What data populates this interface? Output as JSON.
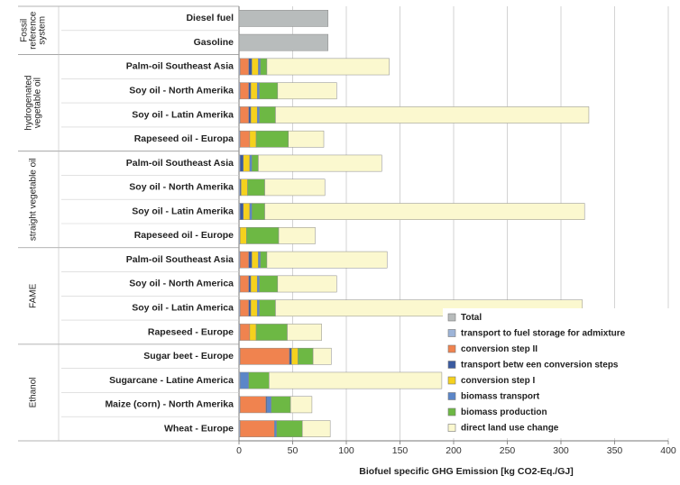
{
  "chart_data": {
    "type": "bar",
    "orientation": "horizontal",
    "stacked": true,
    "xlabel": "Biofuel specific GHG Emission [kg CO2-Eq./GJ]",
    "xlim": [
      0,
      400
    ],
    "xticks": [
      0,
      50,
      100,
      150,
      200,
      250,
      300,
      350,
      400
    ],
    "grid": true,
    "legend_position": "bottom-right",
    "groups": [
      {
        "name": "Fossil reference system",
        "label_lines": [
          "Fossil",
          "reference",
          "system"
        ],
        "rows": 2
      },
      {
        "name": "hydrogenated vegetable oil",
        "label_lines": [
          "hydrogenated",
          "vegetable oil"
        ],
        "rows": 4
      },
      {
        "name": "straight vegetable oil",
        "label_lines": [
          "straight vegetable oil"
        ],
        "rows": 4
      },
      {
        "name": "FAME",
        "label_lines": [
          "FAME"
        ],
        "rows": 4
      },
      {
        "name": "Ethanol",
        "label_lines": [
          "Ethanol"
        ],
        "rows": 4
      }
    ],
    "categories": [
      "Diesel fuel",
      "Gasoline",
      "Palm-oil Southeast Asia",
      "Soy oil - North Amerika",
      "Soy oil - Latin Amerika",
      "Rapeseed oil - Europa",
      "Palm-oil Southeast Asia",
      "Soy oil - North Amerika",
      "Soy oil - Latin Amerika",
      "Rapeseed oil - Europe",
      "Palm-oil Southeast Asia",
      "Soy oil - North America",
      "Soy oil - Latin America",
      "Rapeseed - Europe",
      "Sugar beet - Europe",
      "Sugarcane - Latine America",
      "Maize (corn) - North Amerika",
      "Wheat - Europe"
    ],
    "series": [
      {
        "name": "Total",
        "color": "#b8bcbc",
        "values": [
          83,
          83,
          0,
          0,
          0,
          0,
          0,
          0,
          0,
          0,
          0,
          0,
          0,
          0,
          0,
          0,
          0,
          0
        ]
      },
      {
        "name": "transport to fuel storage for admixture",
        "color": "#9db4d8",
        "values": [
          0,
          0,
          1,
          1,
          1,
          1,
          1,
          1,
          1,
          1,
          1,
          1,
          1,
          1,
          1,
          1,
          1,
          1
        ]
      },
      {
        "name": "conversion step II",
        "color": "#f0834f",
        "values": [
          0,
          0,
          8,
          8,
          8,
          9,
          0,
          0,
          0,
          0,
          8,
          8,
          8,
          9,
          46,
          0,
          24,
          32
        ]
      },
      {
        "name": "transport betw een conversion steps",
        "color": "#3a5aa0",
        "values": [
          0,
          0,
          3,
          2,
          2,
          0,
          3,
          1,
          3,
          0,
          3,
          2,
          2,
          0,
          2,
          0,
          1,
          0
        ]
      },
      {
        "name": "conversion step I",
        "color": "#f5d11e",
        "values": [
          0,
          0,
          6,
          6,
          6,
          6,
          6,
          6,
          6,
          6,
          6,
          6,
          6,
          6,
          6,
          0,
          0,
          0
        ]
      },
      {
        "name": "biomass transport",
        "color": "#5b86c8",
        "values": [
          0,
          0,
          2,
          2,
          2,
          0,
          2,
          0,
          2,
          0,
          2,
          2,
          2,
          0,
          0,
          8,
          4,
          2
        ]
      },
      {
        "name": "biomass production",
        "color": "#6db844",
        "values": [
          0,
          0,
          6,
          17,
          15,
          30,
          6,
          16,
          12,
          30,
          6,
          17,
          15,
          29,
          14,
          19,
          18,
          24
        ]
      },
      {
        "name": "direct land use change",
        "color": "#fbf8cf",
        "values": [
          0,
          0,
          114,
          55,
          292,
          33,
          115,
          56,
          298,
          34,
          112,
          55,
          286,
          32,
          17,
          161,
          20,
          26
        ]
      }
    ]
  }
}
